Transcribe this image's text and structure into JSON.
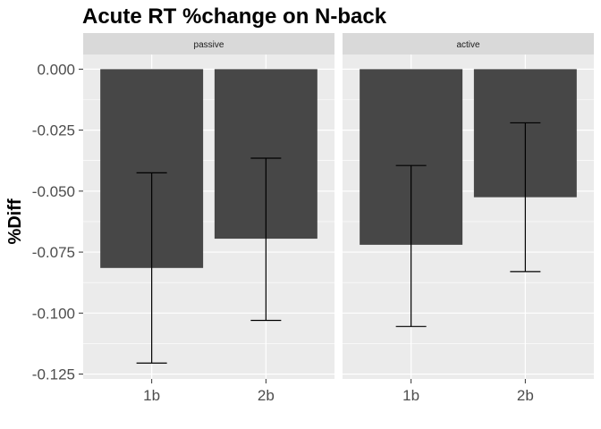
{
  "chart_data": {
    "type": "bar",
    "title": "Acute RT %change on N-back",
    "xlabel": "",
    "ylabel": "%Diff",
    "ylim": [
      -0.127,
      0.006
    ],
    "yticks": [
      0.0,
      -0.025,
      -0.05,
      -0.075,
      -0.1,
      -0.125
    ],
    "ytick_labels": [
      "0.000",
      "-0.025",
      "-0.050",
      "-0.075",
      "-0.100",
      "-0.125"
    ],
    "categories": [
      "1b",
      "2b"
    ],
    "grid": true,
    "bar_color": "#474747",
    "panel_bg": "#ebebeb",
    "strip_bg": "#d9d9d9",
    "facets": [
      {
        "label": "passive",
        "values": [
          -0.0815,
          -0.0695
        ],
        "error_low": [
          -0.1205,
          -0.103
        ],
        "error_high": [
          -0.0425,
          -0.0365
        ]
      },
      {
        "label": "active",
        "values": [
          -0.072,
          -0.0525
        ],
        "error_low": [
          -0.1055,
          -0.083
        ],
        "error_high": [
          -0.0395,
          -0.022
        ]
      }
    ]
  }
}
